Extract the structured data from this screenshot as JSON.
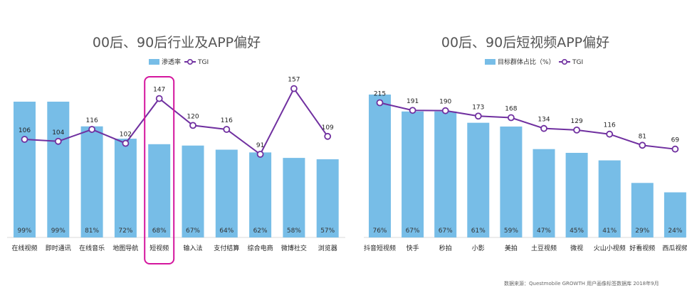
{
  "source_note": "数据来源：Questmobile GROWTH 用户画像标签数据库 2018年9月",
  "colors": {
    "bar": "#77bde7",
    "line": "#7030a0",
    "highlight": "#d4169e",
    "axis": "#d9d9d9"
  },
  "chart_data": [
    {
      "type": "bar",
      "title": "00后、90后行业及APP偏好",
      "legend": {
        "bar": "渗透率",
        "line": "TGI"
      },
      "categories": [
        "在线视频",
        "即时通讯",
        "在线音乐",
        "地图导航",
        "短视频",
        "输入法",
        "支付结算",
        "综合电商",
        "微博社交",
        "浏览器"
      ],
      "series": [
        {
          "name": "渗透率",
          "type": "bar",
          "values": [
            99,
            99,
            81,
            72,
            68,
            67,
            64,
            62,
            58,
            57
          ],
          "labels": [
            "99%",
            "99%",
            "81%",
            "72%",
            "68%",
            "67%",
            "64%",
            "62%",
            "58%",
            "57%"
          ]
        },
        {
          "name": "TGI",
          "type": "line",
          "values": [
            106,
            104,
            116,
            102,
            147,
            120,
            116,
            91,
            157,
            109
          ]
        }
      ],
      "highlight_category": "短视频"
    },
    {
      "type": "bar",
      "title": "00后、90后短视频APP偏好",
      "legend": {
        "bar": "目标群体占比（%）",
        "line": "TGI"
      },
      "categories": [
        "抖音短视频",
        "快手",
        "秒拍",
        "小影",
        "美拍",
        "土豆视频",
        "微视",
        "火山小视频",
        "好看视频",
        "西瓜视频"
      ],
      "series": [
        {
          "name": "目标群体占比（%）",
          "type": "bar",
          "values": [
            76,
            67,
            67,
            61,
            59,
            47,
            45,
            41,
            29,
            24
          ],
          "labels": [
            "76%",
            "67%",
            "67%",
            "61%",
            "59%",
            "47%",
            "45%",
            "41%",
            "29%",
            "24%"
          ]
        },
        {
          "name": "TGI",
          "type": "line",
          "values": [
            215,
            191,
            190,
            173,
            168,
            134,
            129,
            116,
            81,
            69
          ]
        }
      ]
    }
  ]
}
